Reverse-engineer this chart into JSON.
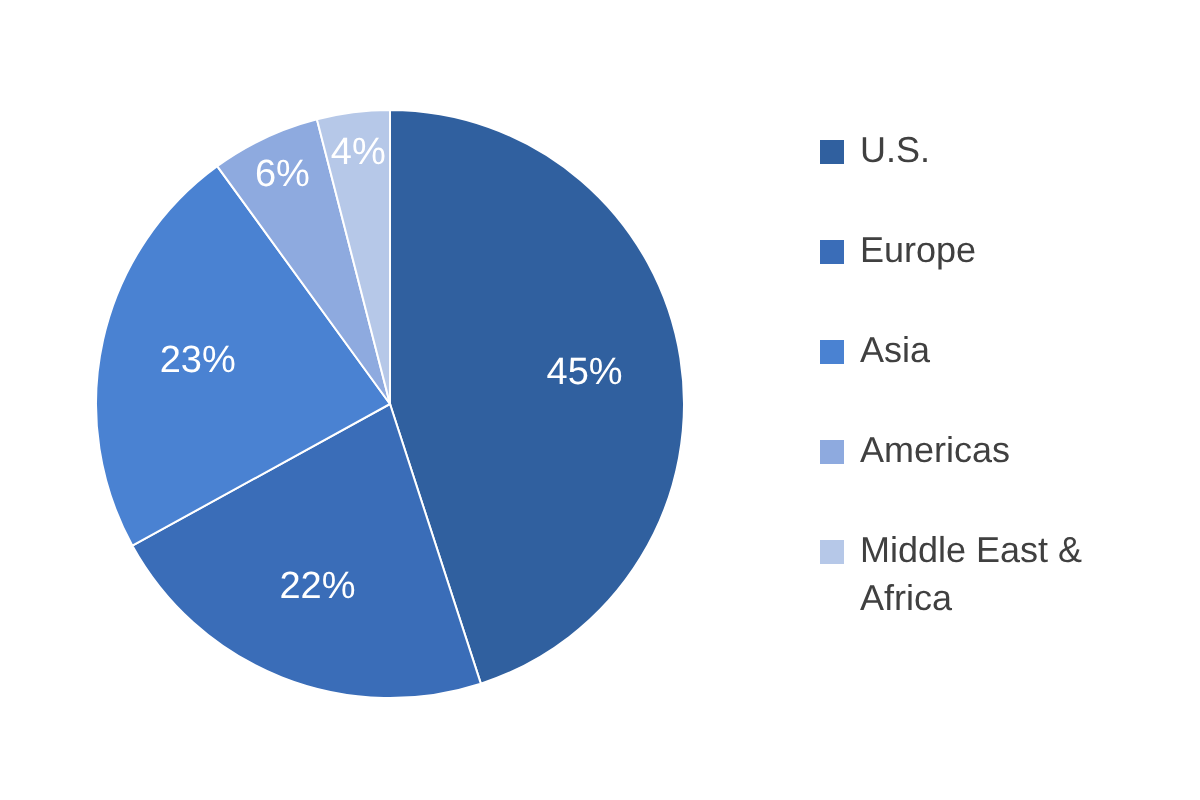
{
  "chart_data": {
    "type": "pie",
    "categories": [
      "U.S.",
      "Europe",
      "Asia",
      "Americas",
      "Middle East & Africa"
    ],
    "values": [
      45,
      22,
      23,
      6,
      4
    ],
    "colors": [
      "#30609f",
      "#3a6db8",
      "#4a82d2",
      "#8eaadf",
      "#b6c8e8"
    ],
    "value_labels": [
      "45%",
      "22%",
      "23%",
      "6%",
      "4%"
    ],
    "legend": "right"
  }
}
